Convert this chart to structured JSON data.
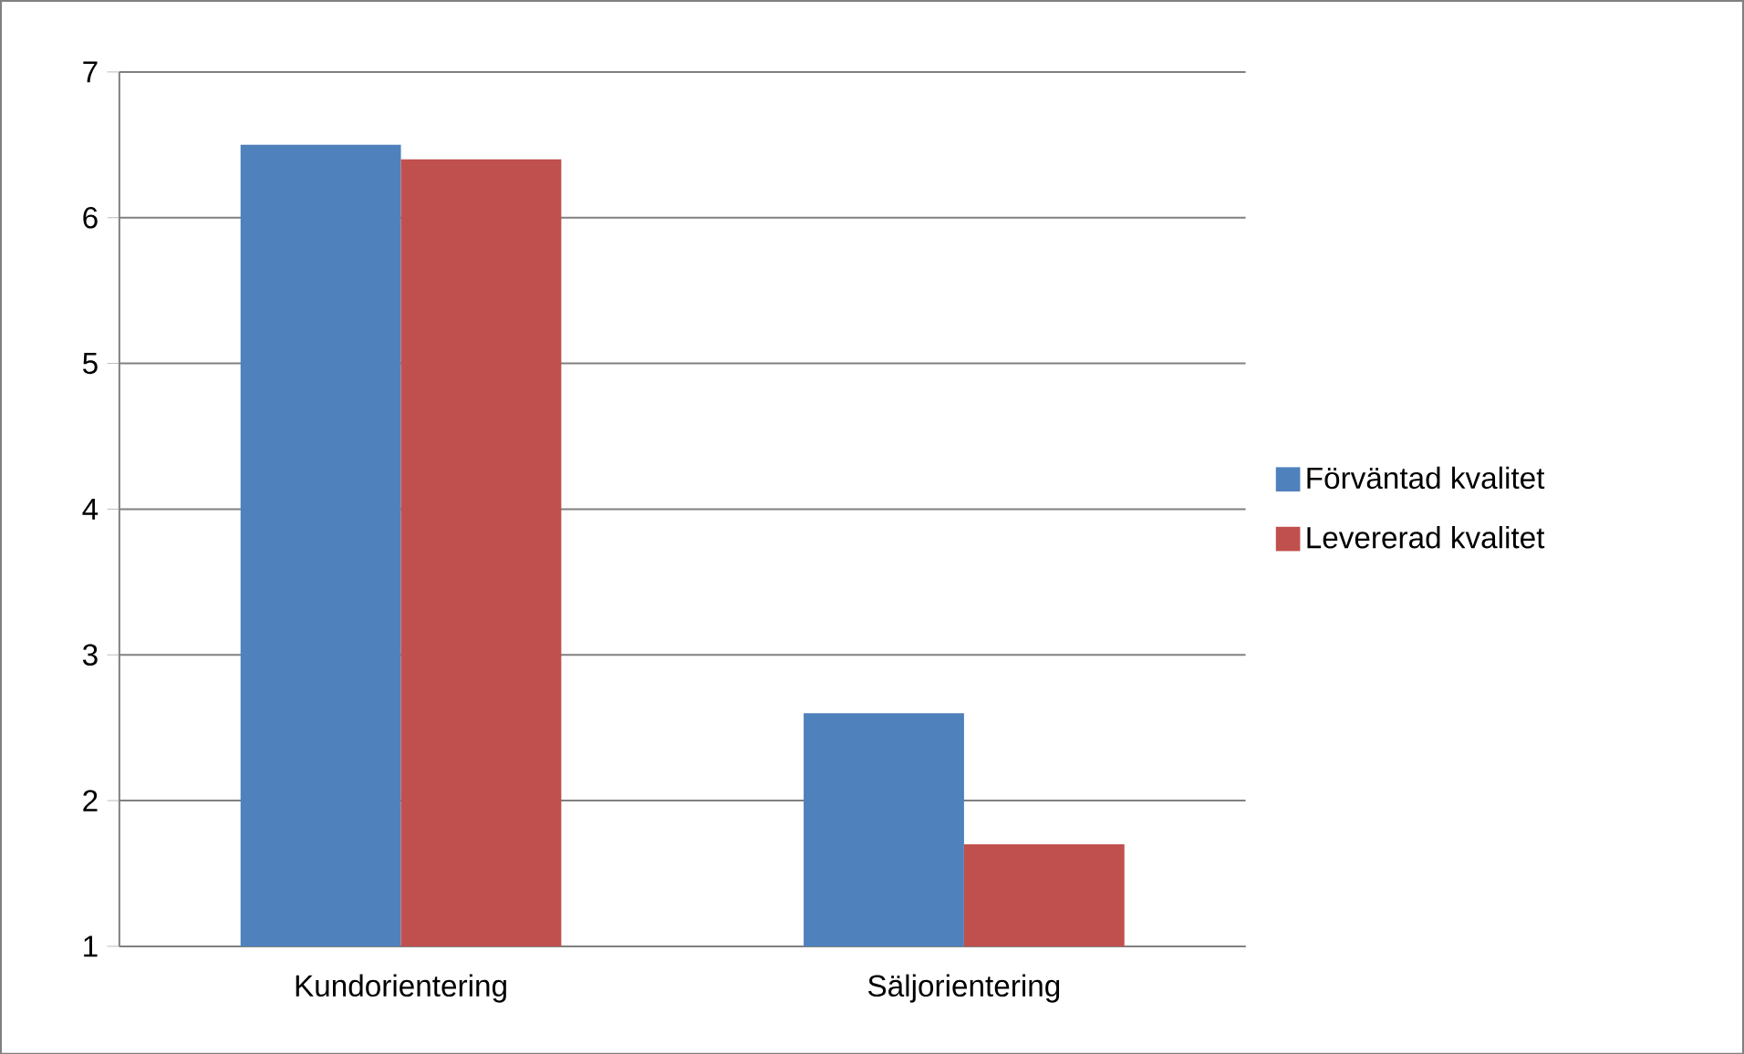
{
  "chart_data": {
    "type": "bar",
    "categories": [
      "Kundorientering",
      "Säljorientering"
    ],
    "series": [
      {
        "name": "Förväntad kvalitet",
        "color": "#4f81bd",
        "values": [
          6.5,
          2.6
        ]
      },
      {
        "name": "Levererad kvalitet",
        "color": "#c0504d",
        "values": [
          6.4,
          1.7
        ]
      }
    ],
    "ylim": [
      1,
      7
    ],
    "yticks": [
      1,
      2,
      3,
      4,
      5,
      6,
      7
    ],
    "grid": "y",
    "legend": "right"
  }
}
